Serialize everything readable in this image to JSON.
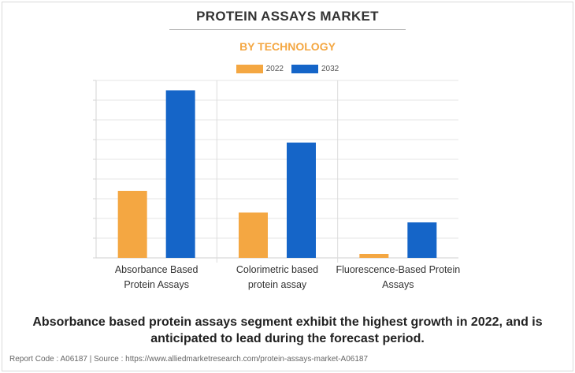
{
  "header": {
    "title": "PROTEIN ASSAYS MARKET",
    "subtitle": "BY TECHNOLOGY"
  },
  "colors": {
    "series_2022": "#f4a742",
    "series_2032": "#1565c8",
    "subtitle": "#f4a742"
  },
  "chart_data": {
    "type": "bar",
    "title": "",
    "xlabel": "",
    "ylabel": "",
    "categories": [
      [
        "Absorbance Based",
        "Protein Assays"
      ],
      [
        "Colorimetric based",
        "protein assay"
      ],
      [
        "Fluorescence-Based Protein",
        "Assays"
      ]
    ],
    "series": [
      {
        "name": "2022",
        "values": [
          34,
          23,
          2
        ]
      },
      {
        "name": "2032",
        "values": [
          85,
          58.5,
          18
        ]
      }
    ],
    "ylim": [
      0,
      90
    ],
    "grid": true,
    "legend": "top-center"
  },
  "caption": "Absorbance based protein assays segment exhibit the highest growth in 2022, and is anticipated to lead during the forecast period.",
  "footer": "Report Code : A06187  |  Source : https://www.alliedmarketresearch.com/protein-assays-market-A06187"
}
